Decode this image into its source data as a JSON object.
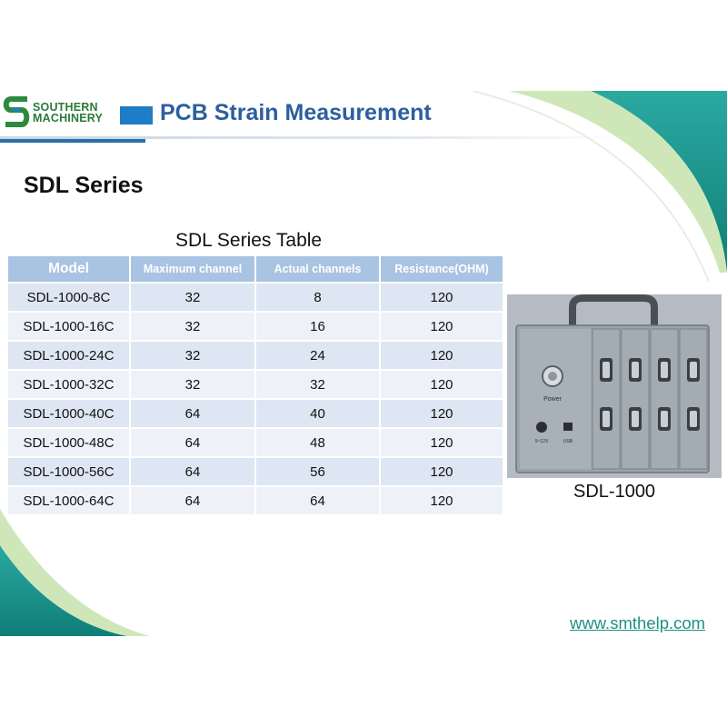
{
  "brand": {
    "line1": "SOUTHERN",
    "line2": "MACHINERY",
    "primary_color": "#2b7a3a",
    "accent_color": "#1d7dc6"
  },
  "slide_title": "PCB Strain Measurement",
  "section_title": "SDL Series",
  "table": {
    "title": "SDL Series Table",
    "headers": [
      "Model",
      "Maximum  channel",
      "Actual channels",
      "Resistance(OHM)"
    ],
    "rows": [
      [
        "SDL-1000-8C",
        "32",
        "8",
        "120"
      ],
      [
        "SDL-1000-16C",
        "32",
        "16",
        "120"
      ],
      [
        "SDL-1000-24C",
        "32",
        "24",
        "120"
      ],
      [
        "SDL-1000-32C",
        "32",
        "32",
        "120"
      ],
      [
        "SDL-1000-40C",
        "64",
        "40",
        "120"
      ],
      [
        "SDL-1000-48C",
        "64",
        "48",
        "120"
      ],
      [
        "SDL-1000-56C",
        "64",
        "56",
        "120"
      ],
      [
        "SDL-1000-64C",
        "64",
        "64",
        "120"
      ]
    ]
  },
  "device": {
    "caption": "SDL-1000",
    "power_label": "Power",
    "dc_label": "9~12V",
    "usb_label": "USB"
  },
  "footer": {
    "link": "www.smthelp.com",
    "link_color": "#1e8f86"
  }
}
